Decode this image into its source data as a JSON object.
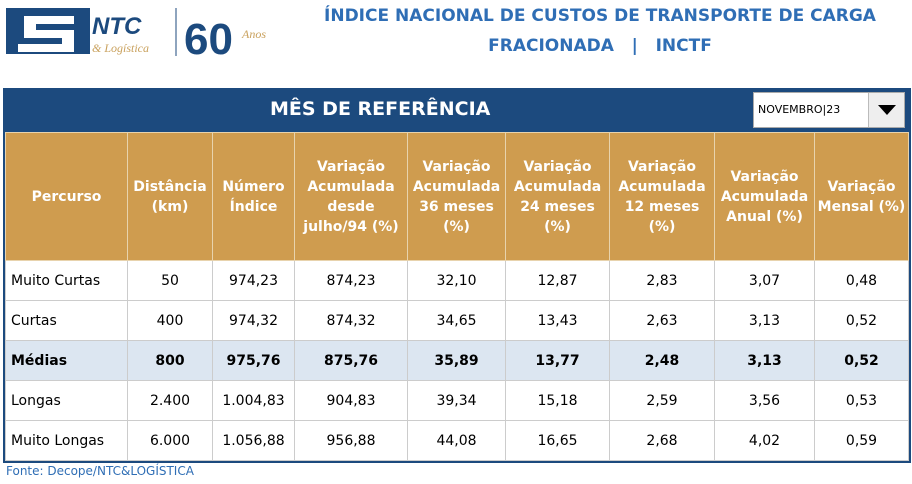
{
  "header": {
    "logo_text": "NTC & Logística 60 Anos",
    "title_line1": "ÍNDICE NACIONAL DE CUSTOS DE TRANSPORTE DE CARGA",
    "title_line2": "FRACIONADA   |   INCTF"
  },
  "ref": {
    "label": "MÊS DE REFERÊNCIA",
    "selected": "NOVEMBRO|23"
  },
  "colors": {
    "blue": "#1c4a7e",
    "gold": "#cf9c4f",
    "highlight": "#dce6f1"
  },
  "columns": [
    "Percurso",
    "Distância (km)",
    "Número Índice",
    "Variação Acumulada desde julho/94 (%)",
    "Variação Acumulada 36 meses (%)",
    "Variação Acumulada 24 meses (%)",
    "Variação Acumulada 12 meses (%)",
    "Variação Acumulada Anual (%)",
    "Variação Mensal (%)"
  ],
  "rows": [
    [
      "Muito Curtas",
      "50",
      "974,23",
      "874,23",
      "32,10",
      "12,87",
      "2,83",
      "3,07",
      "0,48"
    ],
    [
      "Curtas",
      "400",
      "974,32",
      "874,32",
      "34,65",
      "13,43",
      "2,63",
      "3,13",
      "0,52"
    ],
    [
      "Médias",
      "800",
      "975,76",
      "875,76",
      "35,89",
      "13,77",
      "2,48",
      "3,13",
      "0,52"
    ],
    [
      "Longas",
      "2.400",
      "1.004,83",
      "904,83",
      "39,34",
      "15,18",
      "2,59",
      "3,56",
      "0,53"
    ],
    [
      "Muito Longas",
      "6.000",
      "1.056,88",
      "956,88",
      "44,08",
      "16,65",
      "2,68",
      "4,02",
      "0,59"
    ]
  ],
  "footer": "Fonte: Decope/NTC&LOGÍSTICA"
}
